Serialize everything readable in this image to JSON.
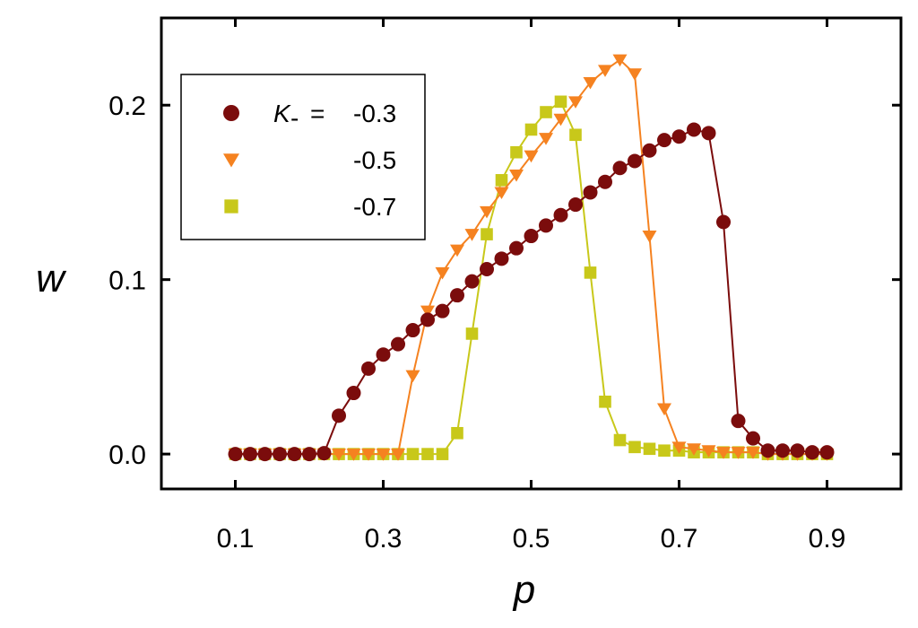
{
  "chart_data": {
    "type": "line",
    "xlabel": "p",
    "ylabel": "w",
    "xlim": [
      0.0,
      1.0
    ],
    "ylim": [
      -0.02,
      0.25
    ],
    "x_ticks": [
      0.1,
      0.3,
      0.5,
      0.7,
      0.9
    ],
    "x_tick_labels": [
      "0.1",
      "0.3",
      "0.5",
      "0.7",
      "0.9"
    ],
    "y_ticks": [
      0.0,
      0.1,
      0.2
    ],
    "y_tick_labels": [
      "0.0",
      "0.1",
      "0.2"
    ],
    "legend": {
      "placement": "top-left",
      "param_symbol": "K",
      "param_subscript": "-",
      "equals": "="
    },
    "series": [
      {
        "name": "-0.3",
        "marker": "circle",
        "color": "#7B0C0C",
        "x": [
          0.1,
          0.12,
          0.14,
          0.16,
          0.18,
          0.2,
          0.22,
          0.24,
          0.26,
          0.28,
          0.3,
          0.32,
          0.34,
          0.36,
          0.38,
          0.4,
          0.42,
          0.44,
          0.46,
          0.48,
          0.5,
          0.52,
          0.54,
          0.56,
          0.58,
          0.6,
          0.62,
          0.64,
          0.66,
          0.68,
          0.7,
          0.72,
          0.74,
          0.76,
          0.78,
          0.8,
          0.82,
          0.84,
          0.86,
          0.88,
          0.9
        ],
        "y": [
          0.0,
          0.0,
          0.0,
          0.0,
          0.0,
          0.0,
          0.0005,
          0.022,
          0.035,
          0.049,
          0.057,
          0.063,
          0.071,
          0.077,
          0.082,
          0.091,
          0.099,
          0.106,
          0.112,
          0.118,
          0.125,
          0.131,
          0.137,
          0.143,
          0.15,
          0.156,
          0.164,
          0.168,
          0.174,
          0.18,
          0.182,
          0.186,
          0.184,
          0.133,
          0.019,
          0.009,
          0.002,
          0.002,
          0.002,
          0.001,
          0.001
        ]
      },
      {
        "name": "-0.5",
        "marker": "triangle-down",
        "color": "#F58220",
        "x": [
          0.1,
          0.12,
          0.14,
          0.16,
          0.18,
          0.2,
          0.22,
          0.24,
          0.26,
          0.28,
          0.3,
          0.32,
          0.34,
          0.36,
          0.38,
          0.4,
          0.42,
          0.44,
          0.46,
          0.48,
          0.5,
          0.52,
          0.54,
          0.56,
          0.58,
          0.6,
          0.62,
          0.64,
          0.66,
          0.68,
          0.7,
          0.72,
          0.74,
          0.76,
          0.78,
          0.8,
          0.82,
          0.84,
          0.86,
          0.88,
          0.9
        ],
        "y": [
          0.0,
          0.0,
          0.0,
          0.0,
          0.0,
          0.0,
          0.0,
          0.0,
          0.0,
          0.0,
          0.0,
          0.0,
          0.045,
          0.082,
          0.104,
          0.117,
          0.126,
          0.139,
          0.15,
          0.16,
          0.171,
          0.181,
          0.192,
          0.202,
          0.213,
          0.22,
          0.226,
          0.218,
          0.125,
          0.026,
          0.004,
          0.003,
          0.002,
          0.001,
          0.001,
          0.001,
          0.0,
          0.0,
          0.0,
          0.0,
          0.0
        ]
      },
      {
        "name": "-0.7",
        "marker": "square",
        "color": "#C8C81A",
        "x": [
          0.1,
          0.12,
          0.14,
          0.16,
          0.18,
          0.2,
          0.22,
          0.24,
          0.26,
          0.28,
          0.3,
          0.32,
          0.34,
          0.36,
          0.38,
          0.4,
          0.42,
          0.44,
          0.46,
          0.48,
          0.5,
          0.52,
          0.54,
          0.56,
          0.58,
          0.6,
          0.62,
          0.64,
          0.66,
          0.68,
          0.7,
          0.72,
          0.74,
          0.76,
          0.78,
          0.8,
          0.82,
          0.84,
          0.86,
          0.88,
          0.9
        ],
        "y": [
          0.0,
          0.0,
          0.0,
          0.0,
          0.0,
          0.0,
          0.0,
          0.0,
          0.0,
          0.0,
          0.0,
          0.0,
          0.0,
          0.0,
          0.0,
          0.012,
          0.069,
          0.126,
          0.157,
          0.173,
          0.186,
          0.196,
          0.202,
          0.183,
          0.104,
          0.03,
          0.008,
          0.004,
          0.003,
          0.002,
          0.002,
          0.001,
          0.001,
          0.001,
          0.001,
          0.001,
          0.0,
          0.0,
          0.0,
          0.0,
          0.0
        ]
      }
    ]
  }
}
